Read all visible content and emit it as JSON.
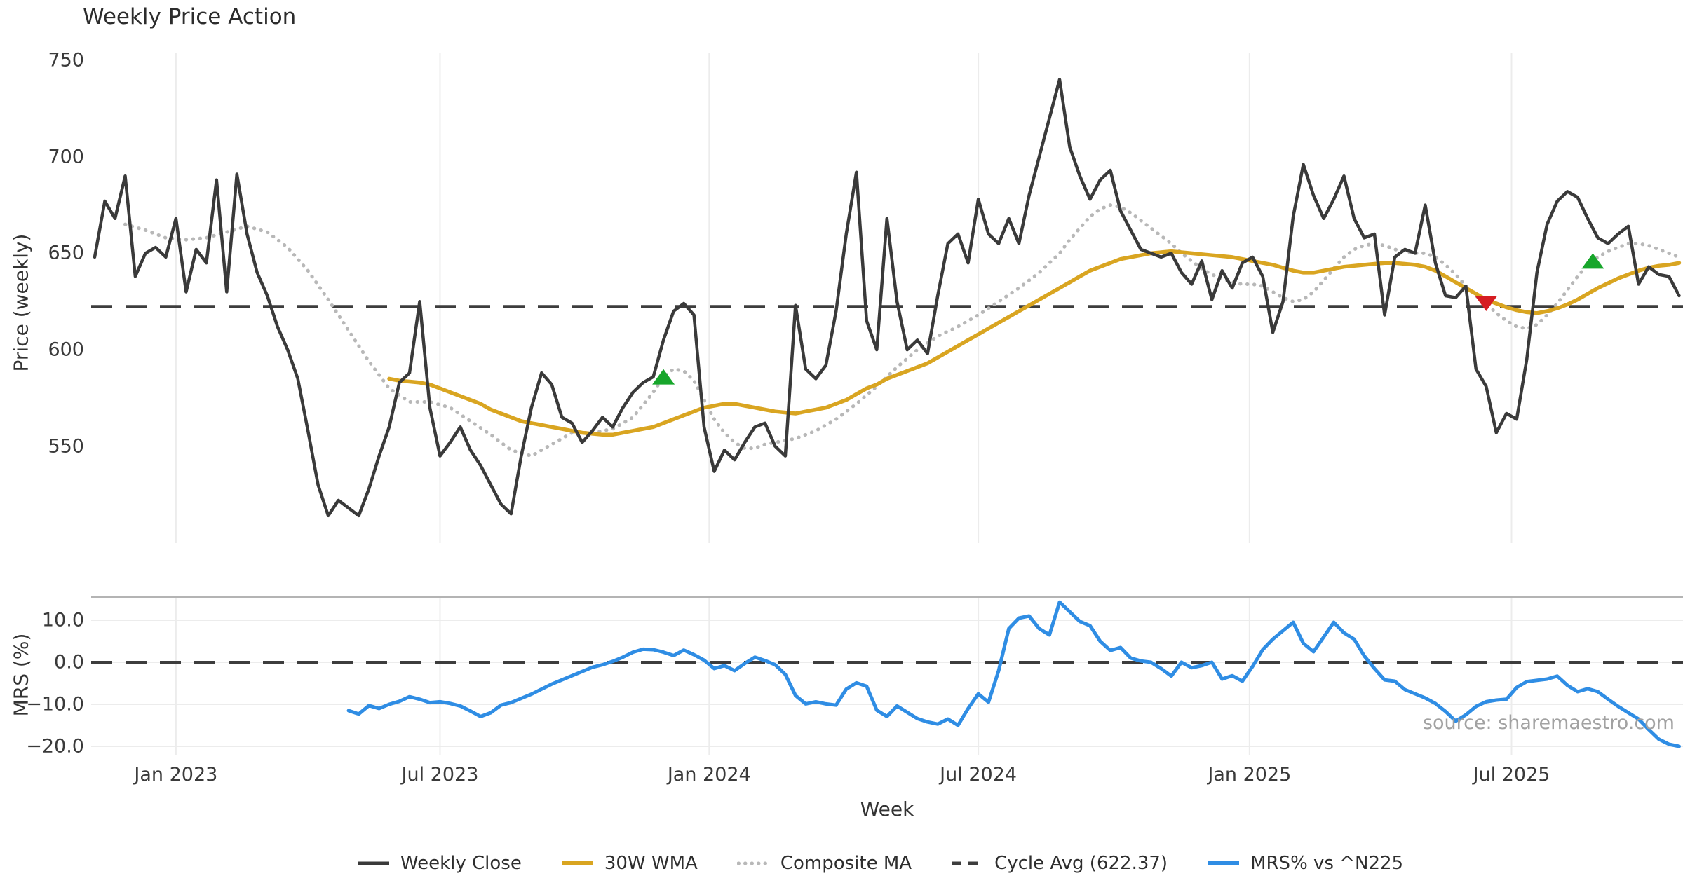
{
  "title": "Weekly Price Action",
  "source": "source: sharemaestro.com",
  "xlabel": "Week",
  "top_panel": {
    "ylabel": "Price (weekly)",
    "ytick_labels": [
      "750",
      "700",
      "650",
      "600",
      "550"
    ],
    "ytick_values": [
      750,
      700,
      650,
      600,
      550
    ]
  },
  "bottom_panel": {
    "ylabel": "MRS (%)",
    "ytick_labels": [
      "10.0",
      "0.0",
      "−10.0",
      "−20.0"
    ],
    "ytick_values": [
      10,
      0,
      -10,
      -20
    ]
  },
  "xticks": [
    {
      "label": "Jan 2023",
      "week": 8
    },
    {
      "label": "Jul 2023",
      "week": 34
    },
    {
      "label": "Jan 2024",
      "week": 60.5
    },
    {
      "label": "Jul 2024",
      "week": 87
    },
    {
      "label": "Jan 2025",
      "week": 113.7
    },
    {
      "label": "Jul 2025",
      "week": 139.5
    }
  ],
  "legend": [
    {
      "label": "Weekly Close",
      "color": "#3a3a3a",
      "style": "solid",
      "width": 5
    },
    {
      "label": "30W WMA",
      "color": "#d9a521",
      "style": "solid",
      "width": 6
    },
    {
      "label": "Composite MA",
      "color": "#b8b8b8",
      "style": "dotted",
      "width": 5
    },
    {
      "label": "Cycle Avg (622.37)",
      "color": "#3d3d3d",
      "style": "dashed",
      "width": 5
    },
    {
      "label": "MRS% vs ^N225",
      "color": "#2f8de4",
      "style": "solid",
      "width": 6
    }
  ],
  "colors": {
    "close": "#3a3a3a",
    "wma": "#d9a521",
    "composite": "#b8b8b8",
    "cycle": "#3d3d3d",
    "mrs": "#2f8de4",
    "grid": "#ececec",
    "spine": "#b4b4b4",
    "buy_marker": "#17a62b",
    "sell_marker": "#d61d22"
  },
  "chart_data": {
    "type": "line",
    "panels": 2,
    "x_axis": {
      "label": "Week",
      "unit": "weeks",
      "start_week": 0,
      "end_week": 156
    },
    "top": {
      "ylabel": "Price (weekly)",
      "ylim": [
        497,
        754
      ],
      "grid": "vertical",
      "cycle_avg": 622.37,
      "series": [
        {
          "name": "Weekly Close",
          "start_week": 0,
          "values": [
            648,
            677,
            668,
            690,
            638,
            650,
            653,
            648,
            668,
            630,
            652,
            645,
            688,
            630,
            691,
            660,
            640,
            628,
            612,
            600,
            585,
            558,
            530,
            514,
            522,
            518,
            514,
            528,
            545,
            560,
            583,
            588,
            625,
            570,
            545,
            552,
            560,
            548,
            540,
            530,
            520,
            515,
            545,
            570,
            588,
            582,
            565,
            562,
            552,
            558,
            565,
            560,
            570,
            578,
            583,
            586,
            605,
            620,
            624,
            618,
            560,
            537,
            548,
            543,
            552,
            560,
            562,
            550,
            545,
            623,
            590,
            585,
            592,
            620,
            660,
            692,
            615,
            600,
            668,
            625,
            600,
            605,
            598,
            628,
            655,
            660,
            645,
            678,
            660,
            655,
            668,
            655,
            680,
            700,
            720,
            740,
            705,
            690,
            678,
            688,
            693,
            672,
            662,
            652,
            650,
            648,
            650,
            640,
            634,
            646,
            626,
            641,
            632,
            645,
            648,
            638,
            609,
            625,
            669,
            696,
            680,
            668,
            678,
            690,
            668,
            658,
            660,
            618,
            648,
            652,
            650,
            675,
            645,
            628,
            627,
            633,
            590,
            581,
            557,
            567,
            564,
            595,
            640,
            665,
            677,
            682,
            679,
            668,
            658,
            655,
            660,
            664,
            634,
            643,
            639,
            638,
            628
          ]
        },
        {
          "name": "30W WMA",
          "start_week": 29,
          "values": [
            585,
            584,
            583.5,
            583,
            582,
            580,
            578,
            576,
            574,
            572,
            569,
            567,
            565,
            563,
            562,
            561,
            560,
            559,
            558,
            557,
            556.5,
            556,
            556,
            557,
            558,
            559,
            560,
            562,
            564,
            566,
            568,
            570,
            571,
            572,
            572,
            571,
            570,
            569,
            568,
            567.5,
            567,
            568,
            569,
            570,
            572,
            574,
            577,
            580,
            582,
            585,
            587,
            589,
            591,
            593,
            596,
            599,
            602,
            605,
            608,
            611,
            614,
            617,
            620,
            623,
            626,
            629,
            632,
            635,
            638,
            641,
            643,
            645,
            647,
            648,
            649,
            650,
            650.5,
            651,
            650.5,
            650,
            649.5,
            649,
            648.5,
            648,
            647,
            646,
            645,
            644,
            642.5,
            641,
            640,
            640,
            641,
            642,
            643,
            643.5,
            644,
            644.5,
            645,
            645,
            644.5,
            644,
            643,
            641,
            638,
            635,
            632,
            629,
            626,
            624,
            622,
            620.5,
            619.5,
            619,
            620,
            621.5,
            623.5,
            626,
            629,
            632,
            634.5,
            637,
            639,
            641,
            642.5,
            643.5,
            644,
            645
          ]
        },
        {
          "name": "Composite MA",
          "start_week": 3,
          "values": [
            665,
            663.5,
            662,
            660,
            658,
            657.5,
            657,
            657.5,
            658,
            659.5,
            661,
            662.5,
            664,
            662.5,
            661,
            657,
            653,
            647,
            641,
            633.5,
            626,
            618,
            610,
            602,
            594,
            587,
            580,
            576.5,
            573,
            573,
            573,
            571.5,
            570,
            566.5,
            563,
            559.5,
            556,
            552,
            548,
            546.5,
            545,
            548,
            551,
            554,
            557,
            557,
            557,
            558,
            559,
            562,
            565,
            571.5,
            578,
            586,
            590,
            589,
            584,
            574,
            564,
            557,
            552,
            549,
            549,
            551,
            552,
            553,
            554,
            556,
            558,
            561,
            564,
            568,
            572,
            576.5,
            581,
            586,
            591,
            595.5,
            600,
            603.5,
            607,
            609.5,
            612,
            615,
            618,
            621.5,
            625,
            628.5,
            632,
            636,
            640,
            645,
            650,
            657,
            663,
            669,
            673,
            675,
            674,
            671,
            667,
            663,
            659,
            655,
            650,
            646,
            642,
            639,
            637,
            635,
            634,
            634,
            633,
            630,
            627,
            625,
            626,
            630,
            636,
            642,
            648,
            652,
            654,
            655,
            654,
            652,
            651,
            650,
            650,
            648,
            644,
            639,
            633,
            628,
            624,
            619,
            615,
            612,
            611,
            613,
            618,
            624,
            631,
            638,
            644,
            648,
            651,
            653,
            655,
            655,
            654,
            652,
            650,
            648
          ]
        }
      ],
      "markers": [
        {
          "type": "buy",
          "shape": "triangle-up",
          "week": 56,
          "value": 586
        },
        {
          "type": "sell",
          "shape": "triangle-down",
          "week": 137,
          "value": 624
        },
        {
          "type": "buy",
          "shape": "triangle-up",
          "week": 147.5,
          "value": 646
        }
      ]
    },
    "bottom": {
      "ylabel": "MRS (%)",
      "ylim": [
        -22,
        15.5
      ],
      "grid": "both",
      "zero_line": 0,
      "series": [
        {
          "name": "MRS% vs ^N225",
          "start_week": 25,
          "values": [
            -11.5,
            -12.3,
            -10.3,
            -11,
            -10,
            -9.3,
            -8.2,
            -8.8,
            -9.6,
            -9.4,
            -9.8,
            -10.4,
            -11.6,
            -12.9,
            -12,
            -10.2,
            -9.6,
            -8.6,
            -7.6,
            -6.4,
            -5.2,
            -4.2,
            -3.2,
            -2.2,
            -1.2,
            -0.6,
            0.2,
            1.2,
            2.4,
            3.1,
            3,
            2.4,
            1.6,
            2.9,
            1.8,
            0.5,
            -1.5,
            -0.8,
            -2,
            -0.3,
            1.2,
            0.4,
            -0.6,
            -2.9,
            -7.9,
            -9.9,
            -9.4,
            -9.9,
            -10.2,
            -6.4,
            -4.9,
            -5.7,
            -11.4,
            -12.9,
            -10.4,
            -11.9,
            -13.4,
            -14.2,
            -14.7,
            -13.5,
            -15,
            -11,
            -7.5,
            -9.5,
            -2,
            8,
            10.5,
            11,
            8,
            6.5,
            14.3,
            12,
            9.7,
            8.7,
            5,
            2.8,
            3.5,
            1,
            0.3,
            0,
            -1.5,
            -3.3,
            0,
            -1.3,
            -0.8,
            0,
            -4,
            -3.2,
            -4.5,
            -1,
            3,
            5.5,
            7.5,
            9.5,
            4.5,
            2.5,
            6,
            9.5,
            7,
            5.5,
            1.5,
            -1.5,
            -4.2,
            -4.5,
            -6.5,
            -7.5,
            -8.5,
            -9.8,
            -11.7,
            -14,
            -12.5,
            -10.5,
            -9.4,
            -9,
            -8.8,
            -6,
            -4.6,
            -4.3,
            -4,
            -3.3,
            -5.5,
            -7,
            -6.3,
            -7,
            -8.8,
            -10.5,
            -12,
            -13.5,
            -16,
            -18.3,
            -19.5,
            -20
          ]
        }
      ]
    }
  }
}
